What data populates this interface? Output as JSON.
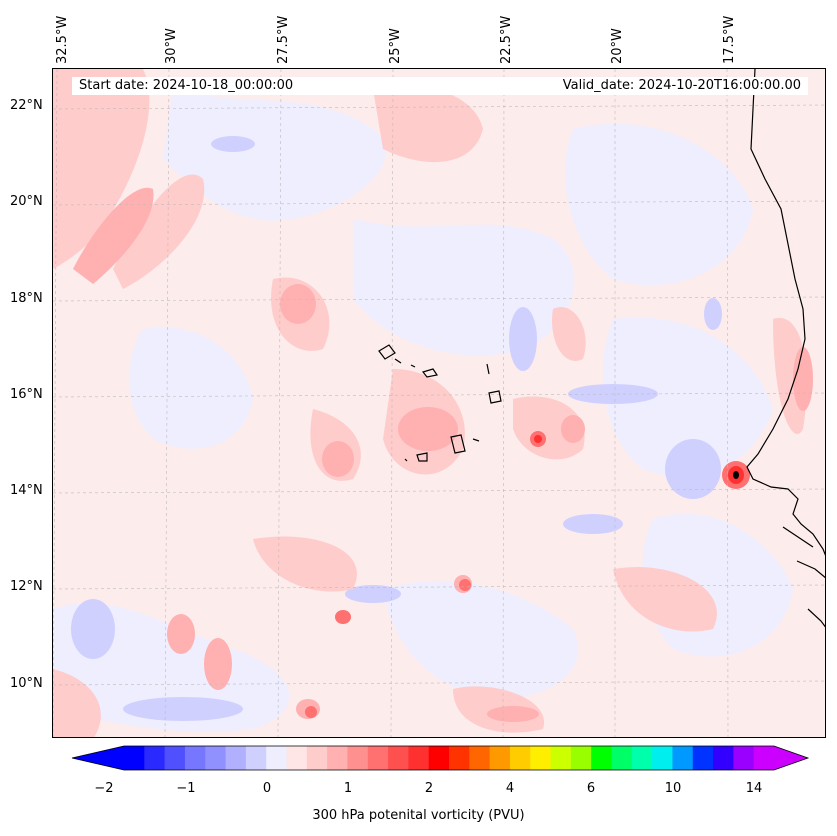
{
  "header": {
    "start_date": "Start date: 2024-10-18_00:00:00",
    "valid_date": "Valid_date: 2024-10-20T16:00:00.00"
  },
  "axes": {
    "longitude_labels": [
      "32.5°W",
      "30°W",
      "27.5°W",
      "25°W",
      "22.5°W",
      "20°W",
      "17.5°W"
    ],
    "latitude_labels": [
      "22°N",
      "20°N",
      "18°N",
      "16°N",
      "14°N",
      "12°N",
      "10°N"
    ]
  },
  "colorbar": {
    "title": "300 hPa potenital vorticity (PVU)",
    "tick_labels": [
      "−2",
      "−1",
      "0",
      "1",
      "2",
      "4",
      "6",
      "10",
      "14"
    ],
    "colors": [
      "#0000ff",
      "#2a2aff",
      "#5050ff",
      "#7676ff",
      "#9090ff",
      "#b0b0ff",
      "#d0d0ff",
      "#eeeeff",
      "#ffe6e6",
      "#ffcccc",
      "#ffb0b0",
      "#ff9090",
      "#ff7070",
      "#ff5050",
      "#ff3030",
      "#ff0000",
      "#ff3300",
      "#ff6600",
      "#ff9900",
      "#ffcc00",
      "#ffee00",
      "#ccff00",
      "#99ff00",
      "#00ff00",
      "#00ff66",
      "#00ffaa",
      "#00eeee",
      "#0099ff",
      "#0033ff",
      "#3300ff",
      "#9900ff",
      "#cc00ff"
    ],
    "under_color": "#0000ff",
    "over_color": "#cc00ff"
  },
  "map": {
    "land_color": "#eeeeff",
    "coast_color": "#000000",
    "grid_color": "#bbbbbb"
  }
}
